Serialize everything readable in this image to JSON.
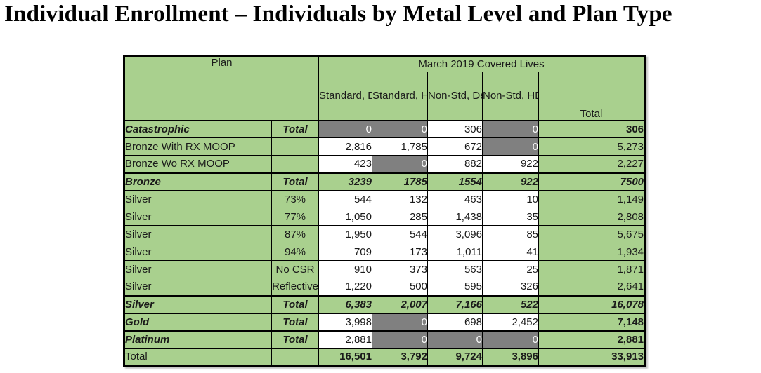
{
  "title": "Individual Enrollment – Individuals by Metal Level and Plan Type",
  "colors": {
    "header_green": "#a9d08e",
    "suppressed_gray": "#808080",
    "border_black": "#000000",
    "suppressed_text": "#ffffff"
  },
  "table": {
    "plan_header": "Plan",
    "group_header": "March 2019 Covered Lives",
    "column_headers": [
      "Standard,\nDeductible",
      "Standard,\nHDHP",
      "Non-Std,\nDeductible",
      "Non-Std,\nHDHP",
      "Total"
    ],
    "rows": [
      {
        "plan": "Catastrophic",
        "sub": "Total",
        "label_style": "bi",
        "cells_style": "normal",
        "section": false,
        "cells": [
          {
            "v": "0",
            "bg": "gray"
          },
          {
            "v": "0",
            "bg": "gray"
          },
          {
            "v": "306",
            "bg": "white"
          },
          {
            "v": "0",
            "bg": "gray"
          }
        ],
        "total": {
          "v": "306",
          "style": "bold"
        }
      },
      {
        "plan": "Bronze With RX MOOP",
        "sub": "",
        "label_style": "normal",
        "cells_style": "normal",
        "section": false,
        "cells": [
          {
            "v": "2,816",
            "bg": "white"
          },
          {
            "v": "1,785",
            "bg": "white"
          },
          {
            "v": "672",
            "bg": "white"
          },
          {
            "v": "0",
            "bg": "gray"
          }
        ],
        "total": {
          "v": "5,273",
          "style": "normal"
        }
      },
      {
        "plan": "Bronze Wo RX MOOP",
        "sub": "",
        "label_style": "normal",
        "cells_style": "normal",
        "section": false,
        "cells": [
          {
            "v": "423",
            "bg": "white"
          },
          {
            "v": "0",
            "bg": "gray"
          },
          {
            "v": "882",
            "bg": "white"
          },
          {
            "v": "922",
            "bg": "white"
          }
        ],
        "total": {
          "v": "2,227",
          "style": "normal"
        }
      },
      {
        "plan": "Bronze",
        "sub": "Total",
        "label_style": "bi",
        "cells_style": "bi",
        "section": true,
        "cells": [
          {
            "v": "3239",
            "bg": "green"
          },
          {
            "v": "1785",
            "bg": "green"
          },
          {
            "v": "1554",
            "bg": "green"
          },
          {
            "v": "922",
            "bg": "green"
          }
        ],
        "total": {
          "v": "7500",
          "style": "bi"
        }
      },
      {
        "plan": "Silver",
        "sub": "73%",
        "label_style": "normal",
        "cells_style": "normal",
        "section": true,
        "cells": [
          {
            "v": "544",
            "bg": "white"
          },
          {
            "v": "132",
            "bg": "white"
          },
          {
            "v": "463",
            "bg": "white"
          },
          {
            "v": "10",
            "bg": "white"
          }
        ],
        "total": {
          "v": "1,149",
          "style": "normal"
        }
      },
      {
        "plan": "Silver",
        "sub": "77%",
        "label_style": "normal",
        "cells_style": "normal",
        "section": false,
        "cells": [
          {
            "v": "1,050",
            "bg": "white"
          },
          {
            "v": "285",
            "bg": "white"
          },
          {
            "v": "1,438",
            "bg": "white"
          },
          {
            "v": "35",
            "bg": "white"
          }
        ],
        "total": {
          "v": "2,808",
          "style": "normal"
        }
      },
      {
        "plan": "Silver",
        "sub": "87%",
        "label_style": "normal",
        "cells_style": "normal",
        "section": false,
        "cells": [
          {
            "v": "1,950",
            "bg": "white"
          },
          {
            "v": "544",
            "bg": "white"
          },
          {
            "v": "3,096",
            "bg": "white"
          },
          {
            "v": "85",
            "bg": "white"
          }
        ],
        "total": {
          "v": "5,675",
          "style": "normal"
        }
      },
      {
        "plan": "Silver",
        "sub": "94%",
        "label_style": "normal",
        "cells_style": "normal",
        "section": false,
        "cells": [
          {
            "v": "709",
            "bg": "white"
          },
          {
            "v": "173",
            "bg": "white"
          },
          {
            "v": "1,011",
            "bg": "white"
          },
          {
            "v": "41",
            "bg": "white"
          }
        ],
        "total": {
          "v": "1,934",
          "style": "normal"
        }
      },
      {
        "plan": "Silver",
        "sub": "No CSR",
        "label_style": "normal",
        "cells_style": "normal",
        "section": false,
        "cells": [
          {
            "v": "910",
            "bg": "white"
          },
          {
            "v": "373",
            "bg": "white"
          },
          {
            "v": "563",
            "bg": "white"
          },
          {
            "v": "25",
            "bg": "white"
          }
        ],
        "total": {
          "v": "1,871",
          "style": "normal"
        }
      },
      {
        "plan": "Silver",
        "sub": "Reflective",
        "label_style": "normal",
        "cells_style": "normal",
        "section": false,
        "cells": [
          {
            "v": "1,220",
            "bg": "white"
          },
          {
            "v": "500",
            "bg": "white"
          },
          {
            "v": "595",
            "bg": "white"
          },
          {
            "v": "326",
            "bg": "white"
          }
        ],
        "total": {
          "v": "2,641",
          "style": "normal"
        }
      },
      {
        "plan": "Silver",
        "sub": "Total",
        "label_style": "bi",
        "cells_style": "bi",
        "section": true,
        "cells": [
          {
            "v": "6,383",
            "bg": "green"
          },
          {
            "v": "2,007",
            "bg": "green"
          },
          {
            "v": "7,166",
            "bg": "green"
          },
          {
            "v": "522",
            "bg": "green"
          }
        ],
        "total": {
          "v": "16,078",
          "style": "bi"
        }
      },
      {
        "plan": "Gold",
        "sub": "Total",
        "label_style": "bi",
        "cells_style": "normal",
        "section": true,
        "cells": [
          {
            "v": "3,998",
            "bg": "white"
          },
          {
            "v": "0",
            "bg": "gray"
          },
          {
            "v": "698",
            "bg": "white"
          },
          {
            "v": "2,452",
            "bg": "white"
          }
        ],
        "total": {
          "v": "7,148",
          "style": "bold"
        }
      },
      {
        "plan": "Platinum",
        "sub": "Total",
        "label_style": "bi",
        "cells_style": "normal",
        "section": true,
        "cells": [
          {
            "v": "2,881",
            "bg": "white"
          },
          {
            "v": "0",
            "bg": "gray"
          },
          {
            "v": "0",
            "bg": "gray"
          },
          {
            "v": "0",
            "bg": "gray"
          }
        ],
        "total": {
          "v": "2,881",
          "style": "bold"
        }
      },
      {
        "plan": "Total",
        "sub": "",
        "label_style": "normal",
        "cells_style": "bold",
        "section": true,
        "cells": [
          {
            "v": "16,501",
            "bg": "green"
          },
          {
            "v": "3,792",
            "bg": "green"
          },
          {
            "v": "9,724",
            "bg": "green"
          },
          {
            "v": "3,896",
            "bg": "green"
          }
        ],
        "total": {
          "v": "33,913",
          "style": "bold"
        }
      }
    ]
  }
}
